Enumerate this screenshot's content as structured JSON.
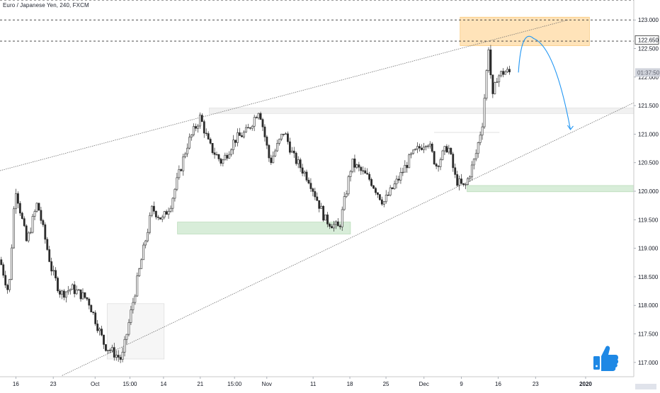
{
  "chart_data": {
    "type": "candlestick",
    "title": "Euro / Japanese Yen, 240, FXCM",
    "ylim": [
      116.75,
      123.35
    ],
    "xlim": [
      0,
      100
    ],
    "y_ticks": [
      "117.000",
      "117.500",
      "118.000",
      "118.500",
      "119.000",
      "119.500",
      "120.000",
      "120.500",
      "121.000",
      "121.500",
      "122.000",
      "122.500",
      "123.000"
    ],
    "price_labels": [
      {
        "label": "122.650",
        "value": 122.65,
        "style": "boxed"
      },
      {
        "label": "01:37:50",
        "value": 122.08,
        "style": "tag"
      }
    ],
    "x_ticks": [
      {
        "label": "16",
        "x": 2.5
      },
      {
        "label": "23",
        "x": 8.4
      },
      {
        "label": "Oct",
        "x": 15.0
      },
      {
        "label": "15:00",
        "x": 20.5
      },
      {
        "label": "14",
        "x": 25.8
      },
      {
        "label": "21",
        "x": 31.6
      },
      {
        "label": "15:00",
        "x": 37.0
      },
      {
        "label": "Nov",
        "x": 42.1
      },
      {
        "label": "11",
        "x": 49.4
      },
      {
        "label": "18",
        "x": 55.2
      },
      {
        "label": "25",
        "x": 60.9
      },
      {
        "label": "Dec",
        "x": 66.9
      },
      {
        "label": "9",
        "x": 72.8
      },
      {
        "label": "16",
        "x": 78.6
      },
      {
        "label": "23",
        "x": 84.5
      },
      {
        "label": "2020",
        "x": 92.4
      }
    ],
    "anchors": [
      [
        0,
        118.8
      ],
      [
        1.4,
        118.2
      ],
      [
        2.4,
        120.1
      ],
      [
        4.2,
        119.1
      ],
      [
        5.9,
        119.8
      ],
      [
        8.2,
        118.6
      ],
      [
        9.6,
        118.2
      ],
      [
        11.3,
        118.3
      ],
      [
        13.9,
        118.1
      ],
      [
        16.5,
        117.3
      ],
      [
        19.2,
        117.05
      ],
      [
        20.7,
        117.9
      ],
      [
        22.5,
        118.9
      ],
      [
        24.0,
        119.7
      ],
      [
        25.6,
        119.5
      ],
      [
        27.0,
        119.8
      ],
      [
        29.5,
        120.8
      ],
      [
        31.6,
        121.3
      ],
      [
        33.0,
        120.8
      ],
      [
        35.0,
        120.5
      ],
      [
        37.0,
        120.9
      ],
      [
        39.0,
        121.05
      ],
      [
        40.9,
        121.45
      ],
      [
        42.6,
        120.5
      ],
      [
        44.8,
        121.05
      ],
      [
        46.3,
        120.6
      ],
      [
        48.8,
        120.2
      ],
      [
        51.3,
        119.5
      ],
      [
        53.5,
        119.35
      ],
      [
        55.5,
        120.5
      ],
      [
        58.4,
        120.2
      ],
      [
        60.5,
        119.8
      ],
      [
        62.8,
        120.2
      ],
      [
        64.8,
        120.6
      ],
      [
        67.4,
        120.9
      ],
      [
        68.8,
        120.45
      ],
      [
        70.7,
        120.8
      ],
      [
        71.9,
        120.2
      ],
      [
        73.3,
        120.05
      ],
      [
        75.0,
        120.6
      ],
      [
        76.1,
        121.2
      ],
      [
        77.1,
        122.55
      ],
      [
        77.7,
        121.6
      ],
      [
        78.4,
        122.0
      ],
      [
        79.6,
        122.1
      ],
      [
        80.4,
        122.08
      ]
    ],
    "shapes": {
      "resistance_zone": {
        "x": [
          72.6,
          93.0
        ],
        "y": [
          122.55,
          123.05
        ],
        "color": "#ffcc80"
      },
      "grey_zone_top": {
        "x": [
          33.0,
          100
        ],
        "y": [
          121.36,
          121.46
        ],
        "color": "#e6e6e6"
      },
      "grey_zone_low": {
        "x": [
          16.9,
          25.9
        ],
        "y": [
          117.06,
          118.03
        ],
        "color": "#e6e6e6"
      },
      "green_zone_mid": {
        "x": [
          28.0,
          55.3
        ],
        "y": [
          119.25,
          119.46
        ],
        "color": "#c8e6c9"
      },
      "green_zone_right": {
        "x": [
          73.7,
          100
        ],
        "y": [
          119.99,
          120.1
        ],
        "color": "#c8e6c9"
      },
      "short_line": {
        "x": [
          68.5,
          78.8
        ],
        "y": [
          121.03,
          121.03
        ],
        "color": "#e0e0e0"
      },
      "upper_trendline": {
        "x0": 0,
        "y0": 120.36,
        "x1": 89.6,
        "y1": 123.0
      },
      "lower_trendline": {
        "x0": 9.8,
        "y0": 116.77,
        "x1": 100,
        "y1": 121.55
      },
      "dashed_levels": [
        123.35,
        123.0,
        122.63
      ],
      "forecast_arrow": {
        "x": [
          81.8,
          84.2,
          90.0
        ],
        "y": [
          122.08,
          122.65,
          121.08
        ],
        "color": "#2196f3"
      }
    },
    "colors": {
      "candle": "#2b2b2b",
      "grid": "#e0e3eb",
      "axis_text": "#131722",
      "forecast": "#2196f3",
      "thumb": "#1e88e5"
    },
    "thumb_icon": "thumbs-up-icon",
    "grid": false,
    "legend": "none"
  }
}
